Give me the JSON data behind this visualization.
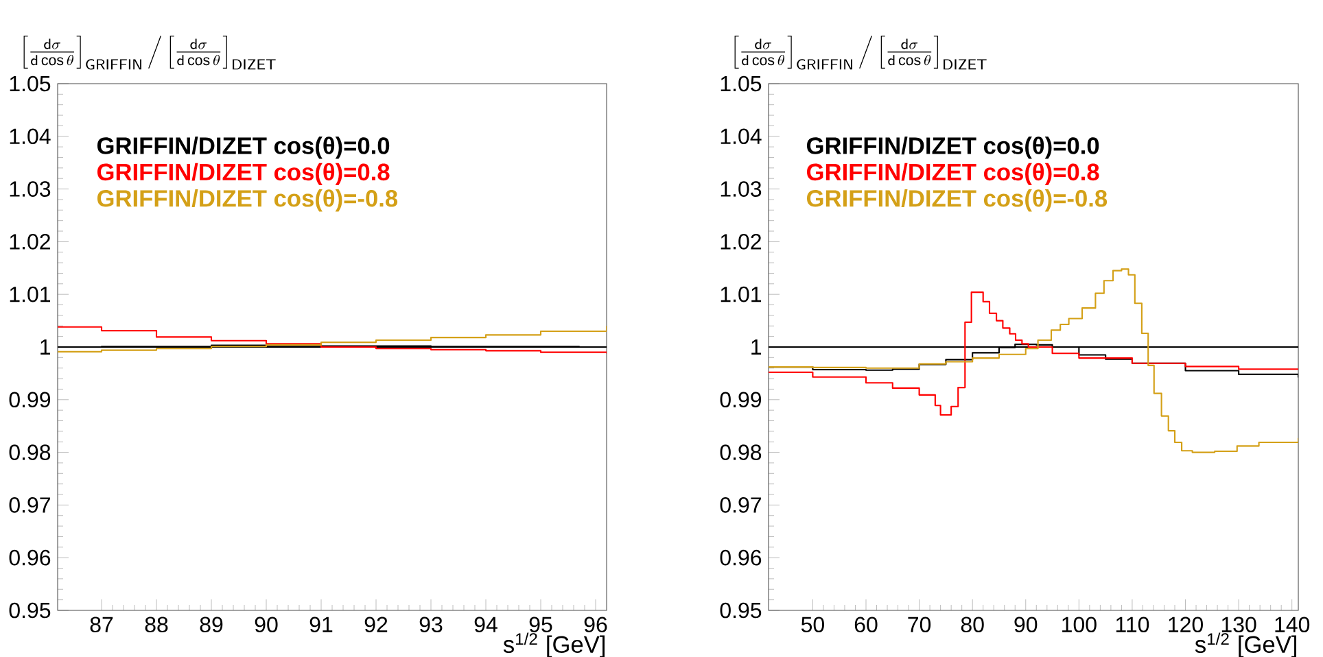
{
  "chart_data": [
    {
      "type": "step",
      "ylabel": "\\left[\\frac{\\mathsf{d}\\sigma}{\\mathsf{d}\\cos\\theta}\\right]_{\\mathsf{GRIFFIN}}\\Big/\\left[\\frac{\\mathsf{d}\\sigma}{\\mathsf{d}\\cos\\theta}\\right]_{\\mathsf{DIZET}}",
      "xlabel": "s$^{1/2}$ [GeV]",
      "xlim": [
        86.2,
        96.2
      ],
      "ylim": [
        0.95,
        1.05
      ],
      "xticks": [
        87,
        88,
        89,
        90,
        91,
        92,
        93,
        94,
        95,
        96
      ],
      "yticks": [
        0.95,
        0.96,
        0.97,
        0.98,
        0.99,
        1,
        1.01,
        1.02,
        1.03,
        1.04,
        1.05
      ],
      "legend": "top left",
      "ref_lines": [
        {
          "axis": "y",
          "value": 1,
          "color": "#000000"
        }
      ],
      "series": [
        {
          "name": "GRIFFIN/DIZET cos(θ)=0.0",
          "color": "#000000",
          "x": [
            86.2,
            87,
            89,
            91,
            93,
            95.7
          ],
          "values": [
            1.0,
            1.0001,
            1.0003,
            1.0002,
            1.0001,
            1.0
          ]
        },
        {
          "name": "GRIFFIN/DIZET cos(θ)=0.8",
          "color": "#ff0000",
          "x": [
            86.2,
            87,
            88,
            89,
            90,
            91,
            92,
            93,
            94,
            95,
            96.2
          ],
          "values": [
            1.0038,
            1.0031,
            1.0019,
            1.0012,
            1.0006,
            1.0,
            0.9997,
            0.9995,
            0.9993,
            0.999,
            0.9988
          ]
        },
        {
          "name": "GRIFFIN/DIZET cos(θ)=-0.8",
          "color": "#d4a017",
          "x": [
            86.2,
            87,
            88,
            89,
            90,
            91,
            92,
            93,
            94,
            95,
            96.2
          ],
          "values": [
            0.9991,
            0.9994,
            0.9997,
            1.0001,
            1.0004,
            1.0009,
            1.0013,
            1.0018,
            1.0023,
            1.003,
            1.004
          ]
        }
      ]
    },
    {
      "type": "step",
      "ylabel": "\\left[\\frac{\\mathsf{d}\\sigma}{\\mathsf{d}\\cos\\theta}\\right]_{\\mathsf{GRIFFIN}}\\Big/\\left[\\frac{\\mathsf{d}\\sigma}{\\mathsf{d}\\cos\\theta}\\right]_{\\mathsf{DIZET}}",
      "xlabel": "s$^{1/2}$ [GeV]",
      "xlim": [
        41.7,
        141.2
      ],
      "ylim": [
        0.95,
        1.05
      ],
      "xticks": [
        50,
        60,
        70,
        80,
        90,
        100,
        110,
        120,
        130,
        140
      ],
      "yticks": [
        0.95,
        0.96,
        0.97,
        0.98,
        0.99,
        1,
        1.01,
        1.02,
        1.03,
        1.04,
        1.05
      ],
      "legend": "top left",
      "ref_lines": [
        {
          "axis": "y",
          "value": 1,
          "color": "#000000"
        }
      ],
      "series": [
        {
          "name": "GRIFFIN/DIZET cos(θ)=0.0",
          "color": "#000000",
          "x": [
            41.7,
            50,
            60,
            65,
            70,
            75,
            80,
            85,
            88,
            92,
            95,
            100,
            105,
            110,
            120,
            130,
            141.2
          ],
          "values": [
            0.9962,
            0.9957,
            0.9956,
            0.9958,
            0.9967,
            0.9976,
            0.9989,
            0.9999,
            1.0005,
            1.0004,
            1.0,
            0.9985,
            0.9977,
            0.9969,
            0.9955,
            0.9948,
            0.9942
          ]
        },
        {
          "name": "GRIFFIN/DIZET cos(θ)=0.8",
          "color": "#ff0000",
          "x": [
            41.7,
            50,
            60,
            65,
            70,
            73,
            74,
            76,
            77.3,
            78.6,
            79.8,
            82,
            83.2,
            84.5,
            85.7,
            87,
            88.1,
            89.3,
            90.5,
            95,
            100,
            110,
            120,
            130,
            141.2
          ],
          "values": [
            0.9952,
            0.9943,
            0.9932,
            0.9922,
            0.9909,
            0.9889,
            0.9871,
            0.9887,
            0.9923,
            1.0047,
            1.0104,
            1.0086,
            1.0064,
            1.005,
            1.0036,
            1.0025,
            1.0013,
            1.0006,
            1.0,
            0.9988,
            0.9979,
            0.9969,
            0.9963,
            0.9958,
            0.9957
          ]
        },
        {
          "name": "GRIFFIN/DIZET cos(θ)=-0.8",
          "color": "#d4a017",
          "x": [
            41.7,
            50,
            60,
            70,
            75,
            80,
            85,
            90,
            92.3,
            94.8,
            96.5,
            98.1,
            100.6,
            103.1,
            104.7,
            106.4,
            108,
            109.3,
            110.5,
            111.8,
            113,
            114.1,
            115.5,
            116.8,
            118,
            119.3,
            121.3,
            125.5,
            129.7,
            133.8,
            141.2
          ],
          "values": [
            0.9962,
            0.9961,
            0.996,
            0.9968,
            0.9972,
            0.9979,
            0.9986,
            0.9997,
            1.0013,
            1.0032,
            1.0043,
            1.0054,
            1.0074,
            1.0102,
            1.0126,
            1.0145,
            1.0148,
            1.0137,
            1.0083,
            1.0026,
            0.9965,
            0.9912,
            0.9869,
            0.9841,
            0.9819,
            0.9803,
            0.98,
            0.9802,
            0.9812,
            0.9819,
            0.9827
          ]
        }
      ]
    }
  ]
}
